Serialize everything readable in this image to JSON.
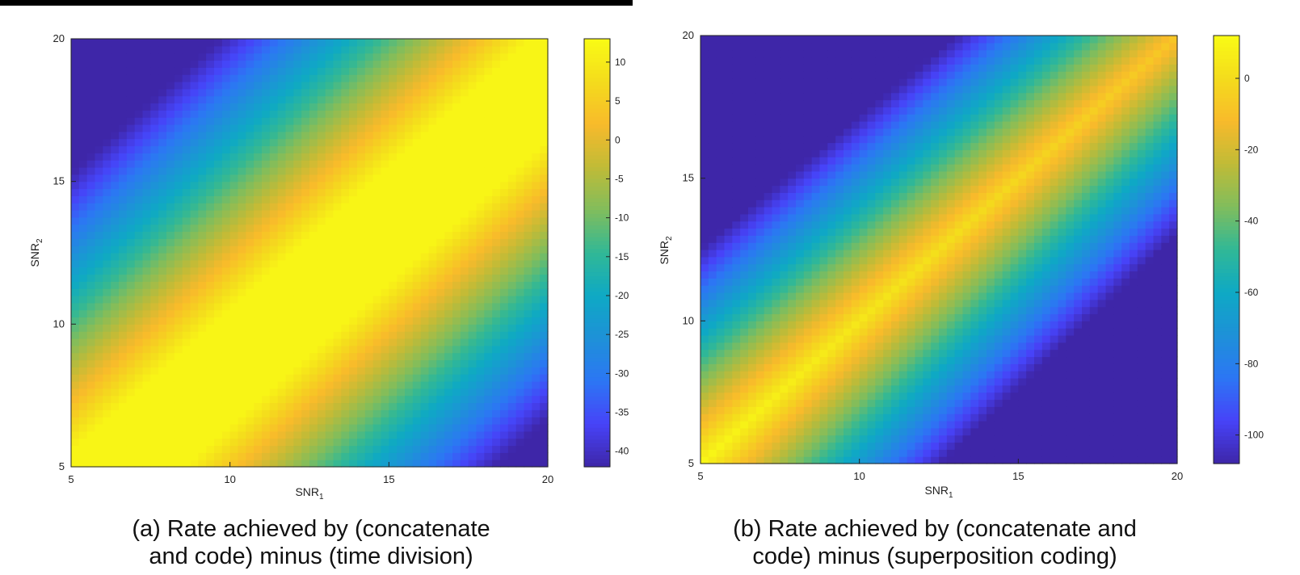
{
  "chart_data": [
    {
      "type": "heatmap",
      "xlabel": "SNR",
      "xlabel_subscript": "1",
      "ylabel": "SNR",
      "ylabel_subscript": "2",
      "xlim": [
        5,
        20
      ],
      "ylim": [
        5,
        20
      ],
      "xticks": [
        "5",
        "10",
        "15",
        "20"
      ],
      "yticks": [
        "5",
        "10",
        "15",
        "20"
      ],
      "colorbar": {
        "range": [
          -42,
          13
        ],
        "ticks": [
          10,
          5,
          0,
          -5,
          -10,
          -15,
          -20,
          -25,
          -30,
          -35,
          -40
        ]
      },
      "caption": "(a) Rate achieved by (concatenate\nand code) minus (time division)",
      "surface": {
        "ridge_offset": 1.5,
        "peak": 12,
        "ridge_width": 2.0,
        "slope": 5.5,
        "floor": -42
      }
    },
    {
      "type": "heatmap",
      "xlabel": "SNR",
      "xlabel_subscript": "1",
      "ylabel": "SNR",
      "ylabel_subscript": "2",
      "xlim": [
        5,
        20
      ],
      "ylim": [
        5,
        20
      ],
      "xticks": [
        "5",
        "10",
        "15",
        "20"
      ],
      "yticks": [
        "5",
        "10",
        "15",
        "20"
      ],
      "colorbar": {
        "range": [
          -108,
          12
        ],
        "ticks": [
          0,
          -20,
          -40,
          -60,
          -80,
          -100
        ]
      },
      "caption": "(b) Rate achieved by (concatenate and\ncode) minus (superposition coding)",
      "surface": {
        "ridge_offset": 0,
        "peak": 10,
        "ridge_width": 0,
        "slope": 15,
        "floor": -108
      }
    }
  ],
  "colormap": [
    "#3e26a8",
    "#4743f8",
    "#2c76f4",
    "#1e91d8",
    "#0ea9c4",
    "#31b896",
    "#81bd5c",
    "#c0bb37",
    "#f8ba2b",
    "#f4dc1c",
    "#f9fb15"
  ]
}
